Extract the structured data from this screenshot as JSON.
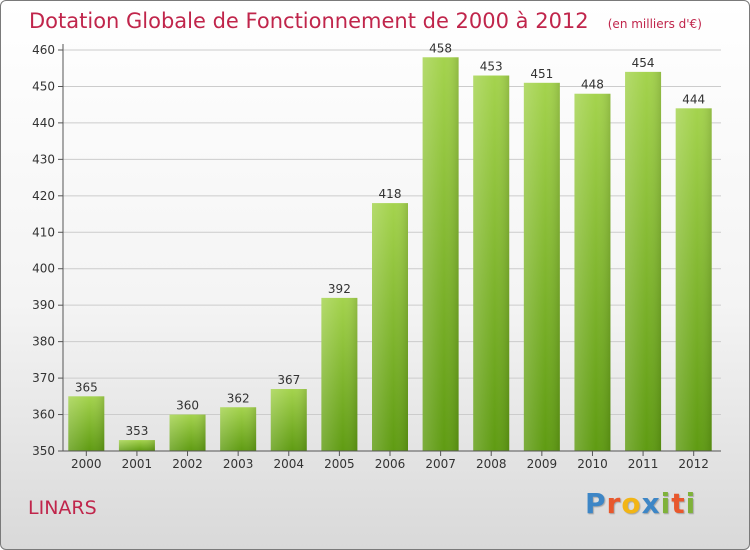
{
  "header": {
    "title": "Dotation Globale de Fonctionnement de 2000 à 2012",
    "unit_note": "(en milliers d'€)"
  },
  "footer": {
    "commune": "LINARS",
    "brand": {
      "letters": [
        "P",
        "r",
        "o",
        "x",
        "i",
        "t",
        "i"
      ],
      "colors": [
        "#3d86c6",
        "#e8582d",
        "#f2b515",
        "#3d86c6",
        "#7fb23a",
        "#e8582d",
        "#7fb23a"
      ]
    }
  },
  "colors": {
    "title": "#c0254b",
    "bar_light": "#a4d34d",
    "bar_dark": "#5f9b12",
    "axis": "#555555",
    "grid": "#cccccc"
  },
  "chart_data": {
    "type": "bar",
    "title": "Dotation Globale de Fonctionnement de 2000 à 2012",
    "subtitle": "(en milliers d'€)",
    "xlabel": "",
    "ylabel": "",
    "categories": [
      "2000",
      "2001",
      "2002",
      "2003",
      "2004",
      "2005",
      "2006",
      "2007",
      "2008",
      "2009",
      "2010",
      "2011",
      "2012"
    ],
    "values": [
      365,
      353,
      360,
      362,
      367,
      392,
      418,
      458,
      453,
      451,
      448,
      454,
      444
    ],
    "ylim": [
      350,
      460
    ],
    "yticks": [
      350,
      360,
      370,
      380,
      390,
      400,
      410,
      420,
      430,
      440,
      450,
      460
    ],
    "grid": true,
    "legend": "none"
  }
}
